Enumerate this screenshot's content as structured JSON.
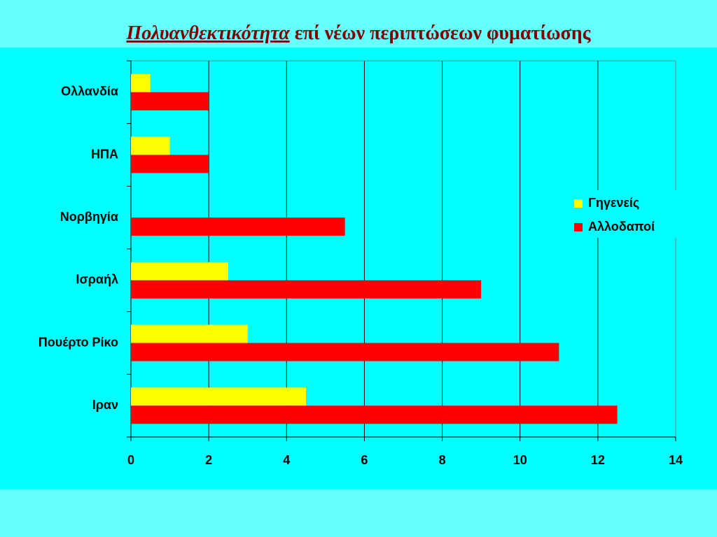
{
  "chart_data": {
    "type": "bar",
    "orientation": "horizontal",
    "title": {
      "emphasis": "Πολυανθεκτικότητα",
      "rest": "επί νέων περιπτώσεων φυματίωσης"
    },
    "categories": [
      "Ολλανδία",
      "ΗΠΑ",
      "Νορβηγία",
      "Ισραήλ",
      "Πουέρτο Ρίκο",
      "Ιραν"
    ],
    "series": [
      {
        "name": "Γηγενείς",
        "color": "#ffff00",
        "values": [
          0.5,
          1,
          0,
          2.5,
          3,
          4.5
        ]
      },
      {
        "name": "Αλλοδαποί",
        "color": "#ff0000",
        "values": [
          2,
          2,
          5.5,
          9,
          11,
          12.5
        ]
      }
    ],
    "xlim": [
      0,
      14
    ],
    "xticks": [
      0,
      2,
      4,
      6,
      8,
      10,
      12,
      14
    ],
    "grid": true,
    "legend": "right"
  }
}
